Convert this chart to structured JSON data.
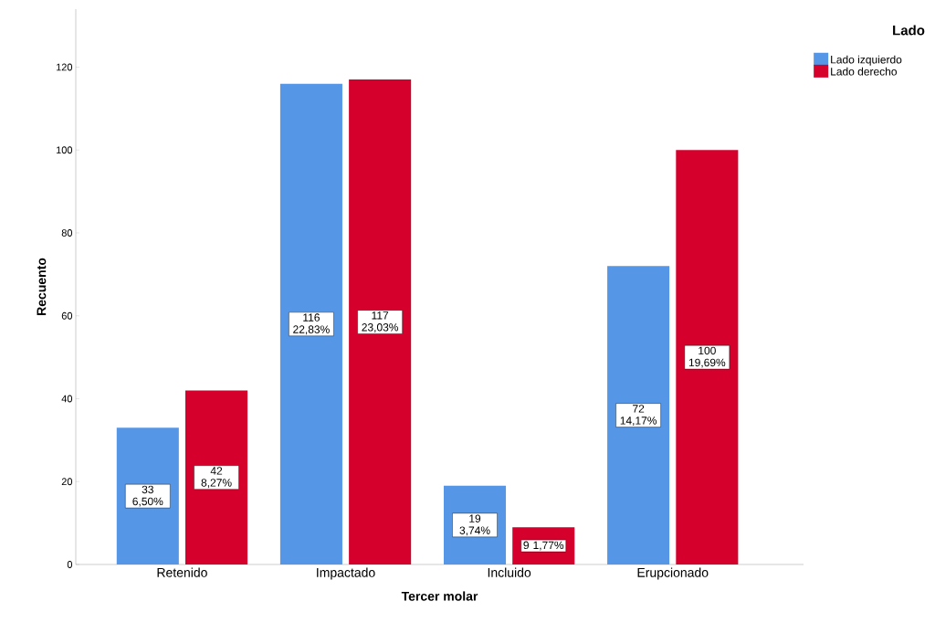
{
  "chart_data": {
    "type": "bar",
    "xlabel": "Tercer molar",
    "ylabel": "Recuento",
    "legend_title": "Lado",
    "legend": "top right",
    "categories": [
      "Retenido",
      "Impactado",
      "Incluido",
      "Erupcionado"
    ],
    "series": [
      {
        "name": "Lado izquierdo",
        "color": "#5596e6",
        "values": [
          33,
          116,
          19,
          72
        ],
        "value_labels": [
          "33 6,50%",
          "116 22,83%",
          "19 3,74%",
          "72 14,17%"
        ]
      },
      {
        "name": "Lado derecho",
        "color": "#d5002b",
        "values": [
          42,
          117,
          9,
          100
        ],
        "value_labels": [
          "42 8,27%",
          "117 23,03%",
          "9 1,77%",
          "100 19,69%"
        ]
      }
    ],
    "ylim": [
      0,
      134
    ],
    "yticks": [
      0,
      20,
      40,
      60,
      80,
      100,
      120
    ],
    "grid": false
  }
}
